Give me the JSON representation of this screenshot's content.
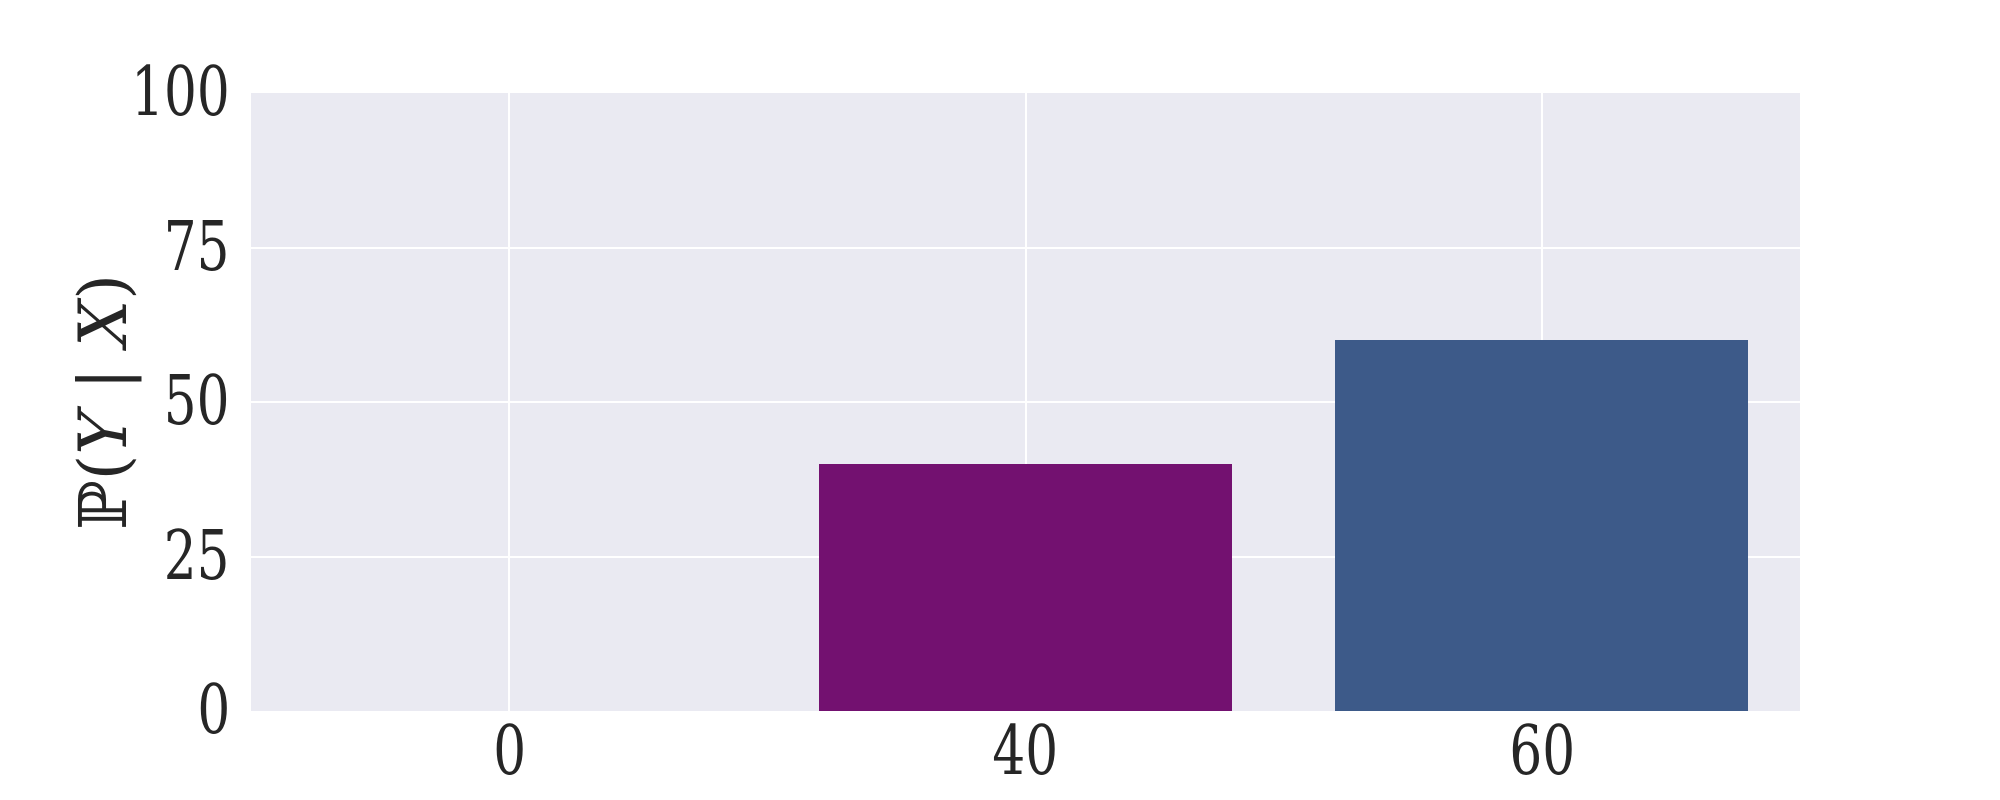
{
  "chart_data": {
    "type": "bar",
    "categories": [
      "0",
      "40",
      "60"
    ],
    "values": [
      0,
      40,
      60
    ],
    "bar_colors": [
      null,
      "#731170",
      "#3d5a89"
    ],
    "ylabel": "ℙ(Y | X)",
    "ylabel_parts": [
      {
        "text": "ℙ(",
        "italic": false
      },
      {
        "text": "Y",
        "italic": true
      },
      {
        "text": " | ",
        "italic": false
      },
      {
        "text": "X",
        "italic": true
      },
      {
        "text": ")",
        "italic": false
      }
    ],
    "ylim": [
      0,
      100
    ],
    "yticks": [
      0,
      25,
      50,
      75,
      100
    ],
    "grid": true,
    "legend_visible": false,
    "bar_width_fraction": 0.8,
    "colors": {
      "plot_background": "#eaeaf2",
      "grid": "#ffffff",
      "text": "#262626"
    }
  }
}
